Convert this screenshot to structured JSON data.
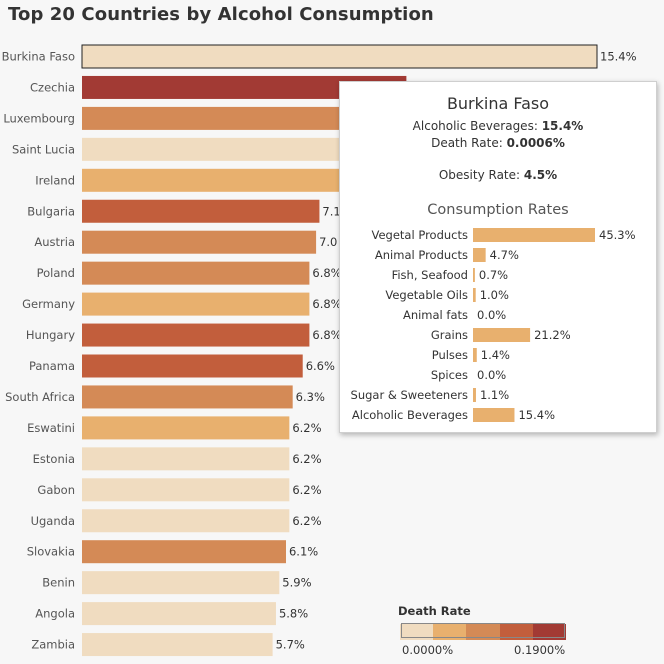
{
  "chart_data": {
    "type": "bar",
    "orientation": "horizontal",
    "title": "Top 20 Countries by Alcohol Consumption",
    "value_suffix": "%",
    "categories": [
      "Burkina Faso",
      "Czechia",
      "Luxembourg",
      "Saint Lucia",
      "Ireland",
      "Bulgaria",
      "Austria",
      "Poland",
      "Germany",
      "Hungary",
      "Panama",
      "South Africa",
      "Eswatini",
      "Estonia",
      "Gabon",
      "Uganda",
      "Slovakia",
      "Benin",
      "Angola",
      "Zambia"
    ],
    "values": [
      15.4,
      9.7,
      9.5,
      8.9,
      8.0,
      7.1,
      7.0,
      6.8,
      6.8,
      6.8,
      6.6,
      6.3,
      6.2,
      6.2,
      6.2,
      6.2,
      6.1,
      5.9,
      5.8,
      5.7
    ],
    "value_labels": [
      "15.4%",
      "",
      "",
      "",
      "",
      "7.1",
      "7.0",
      "6.8%",
      "6.8%",
      "6.8%",
      "6.6%",
      "6.3%",
      "6.2%",
      "6.2%",
      "6.2%",
      "6.2%",
      "6.1%",
      "5.9%",
      "5.8%",
      "5.7%"
    ],
    "color_level": [
      0,
      4,
      2,
      0,
      1,
      3,
      2,
      2,
      1,
      3,
      3,
      2,
      1,
      0,
      0,
      0,
      2,
      0,
      0,
      0
    ],
    "xlim": [
      0,
      15.4
    ],
    "highlighted": "Burkina Faso",
    "legend": {
      "title": "Death Rate",
      "min_label": "0.0000%",
      "max_label": "0.1900%",
      "placement": "bottom-right",
      "colors": [
        "#f0dcc0",
        "#e8b06e",
        "#d48a56",
        "#c25e3c",
        "#a23a34"
      ]
    }
  },
  "tooltip": {
    "country": "Burkina Faso",
    "alcohol_label": "Alcoholic Beverages: ",
    "alcohol_value": "15.4%",
    "death_label": "Death Rate: ",
    "death_value": "0.0006%",
    "obesity_label": "Obesity Rate: ",
    "obesity_value": "4.5%",
    "subtitle": "Consumption Rates",
    "bar_color": "#e8b06e",
    "rates": [
      {
        "label": "Vegetal Products",
        "value": 45.3,
        "text": "45.3%"
      },
      {
        "label": "Animal Products",
        "value": 4.7,
        "text": "4.7%"
      },
      {
        "label": "Fish, Seafood",
        "value": 0.7,
        "text": "0.7%"
      },
      {
        "label": "Vegetable Oils",
        "value": 1.0,
        "text": "1.0%"
      },
      {
        "label": "Animal fats",
        "value": 0.0,
        "text": "0.0%"
      },
      {
        "label": "Grains",
        "value": 21.2,
        "text": "21.2%"
      },
      {
        "label": "Pulses",
        "value": 1.4,
        "text": "1.4%"
      },
      {
        "label": "Spices",
        "value": 0.0,
        "text": "0.0%"
      },
      {
        "label": "Sugar & Sweeteners",
        "value": 1.1,
        "text": "1.1%"
      },
      {
        "label": "Alcoholic Beverages",
        "value": 15.4,
        "text": "15.4%"
      }
    ]
  }
}
